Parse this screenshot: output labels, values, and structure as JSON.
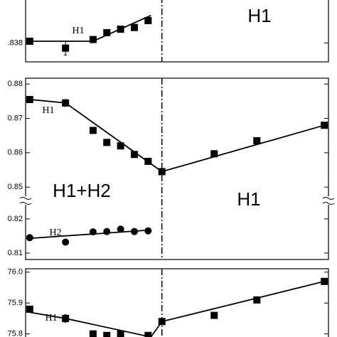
{
  "chart_data": [
    {
      "type": "scatter",
      "xlim": [
        0,
        22
      ],
      "ylim": [
        0.8369,
        0.8405
      ],
      "yticks": [
        {
          "value": 0.838,
          "label": ".838"
        }
      ],
      "boundary_x": 9.9,
      "series": [
        {
          "name": "H1",
          "marker": "square",
          "color": "#000",
          "x": [
            0.3,
            2.9,
            4.9,
            5.9,
            6.9,
            7.9,
            8.9
          ],
          "values": [
            0.8381,
            0.8377,
            0.8382,
            0.8386,
            0.8388,
            0.8389,
            0.8393
          ],
          "errors": [
            null,
            0.0004,
            null,
            null,
            null,
            null,
            null
          ]
        }
      ],
      "fit": {
        "x": [
          0.3,
          4.9,
          9.1
        ],
        "values": [
          0.8381,
          0.8381,
          0.8396
        ]
      },
      "annotations": [
        "H1",
        "H1"
      ]
    },
    {
      "type": "scatter",
      "xlim": [
        0,
        22
      ],
      "ylim": [
        0.8461,
        0.8817
      ],
      "yticks": [
        0.88,
        0.87,
        0.86,
        0.85
      ],
      "boundary_x": 9.9,
      "series": [
        {
          "name": "H1",
          "marker": "square",
          "color": "#000",
          "x": [
            0.3,
            2.9,
            4.9,
            5.9,
            6.9,
            7.9,
            8.9,
            9.9,
            13.7,
            16.8,
            21.7
          ],
          "values": [
            0.8755,
            0.8745,
            0.8665,
            0.863,
            0.862,
            0.8595,
            0.8575,
            0.8545,
            0.8597,
            0.8635,
            0.868
          ],
          "errors": [
            null,
            0.001,
            null,
            null,
            null,
            null,
            null,
            null,
            null,
            null,
            null
          ]
        }
      ],
      "fit": {
        "x": [
          0.3,
          2.9,
          9.9,
          21.7
        ],
        "values": [
          0.8755,
          0.8745,
          0.8545,
          0.868
        ]
      },
      "annotations": [
        "H1",
        "H1+H2",
        "H1"
      ]
    },
    {
      "type": "scatter",
      "xlim": [
        0,
        22
      ],
      "ylim": [
        0.8081,
        0.8254
      ],
      "yticks": [
        0.82,
        0.81
      ],
      "series": [
        {
          "name": "H2",
          "marker": "circle",
          "color": "#000",
          "x": [
            0.3,
            2.9,
            4.9,
            5.9,
            6.9,
            7.9,
            8.9
          ],
          "values": [
            0.8145,
            0.8132,
            0.8162,
            0.8163,
            0.817,
            0.8163,
            0.8165
          ]
        }
      ],
      "fit": {
        "x": [
          0.3,
          8.9
        ],
        "values": [
          0.8143,
          0.8167
        ]
      },
      "annotations": [
        "H2"
      ]
    },
    {
      "type": "scatter",
      "xlim": [
        0,
        22
      ],
      "ylim": [
        75.79,
        76.011
      ],
      "yticks": [
        {
          "value": 76.0,
          "label": "76.0"
        },
        75.9,
        75.8
      ],
      "boundary_x": 9.9,
      "series": [
        {
          "name": "H1",
          "marker": "square",
          "color": "#000",
          "x": [
            0.3,
            2.9,
            4.9,
            5.9,
            6.9,
            8.9,
            9.9,
            13.7,
            16.8,
            21.7
          ],
          "values": [
            75.88,
            75.85,
            75.8,
            75.795,
            75.8,
            75.795,
            75.84,
            75.86,
            75.91,
            75.97
          ],
          "errors": [
            null,
            0.012,
            null,
            null,
            null,
            null,
            null,
            null,
            null,
            null
          ]
        }
      ],
      "fit": {
        "x": [
          0.3,
          2.9,
          9.1,
          9.9,
          21.7
        ],
        "values": [
          75.87,
          75.85,
          75.79,
          75.84,
          75.97
        ]
      },
      "annotations": [
        "H1"
      ]
    }
  ]
}
